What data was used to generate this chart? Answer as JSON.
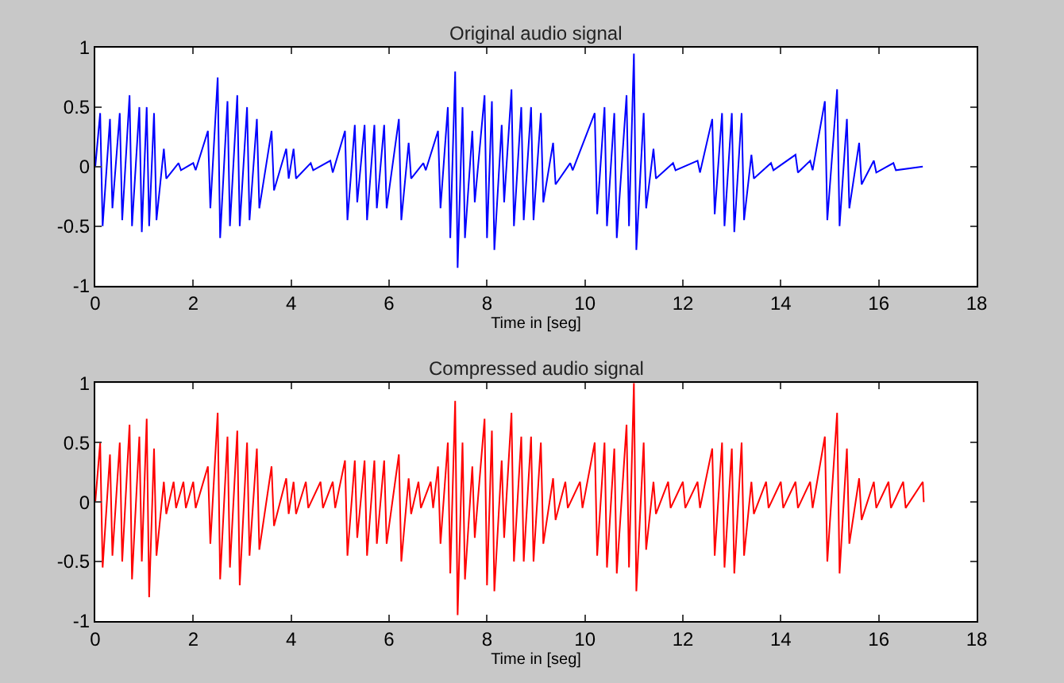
{
  "chart_data": [
    {
      "type": "line",
      "title": "Original audio signal",
      "xlabel": "Time in [seg]",
      "xlim": [
        0,
        18
      ],
      "xticks": [
        0,
        2,
        4,
        6,
        8,
        10,
        12,
        14,
        16,
        18
      ],
      "ylim": [
        -1,
        1
      ],
      "yticks": [
        -1,
        -0.5,
        0,
        0.5,
        1
      ],
      "marker": "none",
      "line_style": "solid",
      "series": [
        {
          "color": "#0000ff",
          "x": [
            0.0,
            0.1,
            0.15,
            0.3,
            0.35,
            0.5,
            0.55,
            0.7,
            0.75,
            0.9,
            0.95,
            1.05,
            1.1,
            1.2,
            1.25,
            1.4,
            1.45,
            1.7,
            1.75,
            2.0,
            2.05,
            2.3,
            2.35,
            2.5,
            2.55,
            2.7,
            2.75,
            2.9,
            2.95,
            3.1,
            3.15,
            3.3,
            3.35,
            3.6,
            3.65,
            3.9,
            3.95,
            4.05,
            4.1,
            4.4,
            4.45,
            4.8,
            4.85,
            5.1,
            5.15,
            5.3,
            5.35,
            5.5,
            5.55,
            5.7,
            5.75,
            5.9,
            5.95,
            6.2,
            6.25,
            6.4,
            6.45,
            6.7,
            6.75,
            7.0,
            7.05,
            7.2,
            7.25,
            7.35,
            7.4,
            7.5,
            7.55,
            7.7,
            7.75,
            7.95,
            8.0,
            8.1,
            8.15,
            8.3,
            8.35,
            8.5,
            8.55,
            8.7,
            8.75,
            8.9,
            8.95,
            9.1,
            9.15,
            9.35,
            9.4,
            9.7,
            9.75,
            10.2,
            10.25,
            10.4,
            10.45,
            10.6,
            10.65,
            10.85,
            10.9,
            11.0,
            11.05,
            11.2,
            11.25,
            11.4,
            11.45,
            11.8,
            11.85,
            12.3,
            12.35,
            12.6,
            12.65,
            12.8,
            12.85,
            13.0,
            13.05,
            13.2,
            13.25,
            13.4,
            13.45,
            13.8,
            13.85,
            14.3,
            14.35,
            14.6,
            14.65,
            14.9,
            14.95,
            15.15,
            15.2,
            15.35,
            15.4,
            15.6,
            15.65,
            15.9,
            15.95,
            16.3,
            16.35,
            16.9
          ],
          "values": [
            0.0,
            0.45,
            -0.5,
            0.4,
            -0.35,
            0.45,
            -0.45,
            0.6,
            -0.5,
            0.5,
            -0.55,
            0.5,
            -0.5,
            0.45,
            -0.45,
            0.15,
            -0.1,
            0.03,
            -0.03,
            0.03,
            -0.03,
            0.3,
            -0.35,
            0.75,
            -0.6,
            0.55,
            -0.5,
            0.6,
            -0.5,
            0.5,
            -0.45,
            0.4,
            -0.35,
            0.3,
            -0.2,
            0.15,
            -0.1,
            0.15,
            -0.1,
            0.03,
            -0.03,
            0.05,
            -0.05,
            0.3,
            -0.45,
            0.35,
            -0.3,
            0.35,
            -0.45,
            0.35,
            -0.35,
            0.35,
            -0.35,
            0.4,
            -0.45,
            0.2,
            -0.1,
            0.03,
            -0.03,
            0.3,
            -0.35,
            0.5,
            -0.6,
            0.8,
            -0.85,
            0.5,
            -0.6,
            0.3,
            -0.3,
            0.6,
            -0.6,
            0.55,
            -0.7,
            0.35,
            -0.3,
            0.65,
            -0.5,
            0.5,
            -0.45,
            0.5,
            -0.45,
            0.45,
            -0.3,
            0.2,
            -0.15,
            0.03,
            -0.03,
            0.45,
            -0.4,
            0.5,
            -0.5,
            0.45,
            -0.6,
            0.6,
            -0.5,
            0.95,
            -0.7,
            0.45,
            -0.35,
            0.15,
            -0.1,
            0.03,
            -0.03,
            0.05,
            -0.05,
            0.4,
            -0.4,
            0.45,
            -0.5,
            0.45,
            -0.55,
            0.45,
            -0.45,
            0.1,
            -0.1,
            0.03,
            -0.03,
            0.1,
            -0.05,
            0.05,
            -0.03,
            0.55,
            -0.45,
            0.65,
            -0.5,
            0.4,
            -0.35,
            0.2,
            -0.15,
            0.05,
            -0.05,
            0.03,
            -0.03,
            0.0
          ]
        }
      ]
    },
    {
      "type": "line",
      "title": "Compressed audio signal",
      "xlabel": "Time in [seg]",
      "xlim": [
        0,
        18
      ],
      "xticks": [
        0,
        2,
        4,
        6,
        8,
        10,
        12,
        14,
        16,
        18
      ],
      "ylim": [
        -1,
        1
      ],
      "yticks": [
        -1,
        -0.5,
        0,
        0.5,
        1
      ],
      "marker": "none",
      "line_style": "solid",
      "series": [
        {
          "color": "#ff0000",
          "x": [
            0.0,
            0.1,
            0.15,
            0.3,
            0.35,
            0.5,
            0.55,
            0.7,
            0.75,
            0.9,
            0.95,
            1.05,
            1.1,
            1.2,
            1.25,
            1.4,
            1.45,
            1.6,
            1.65,
            1.8,
            1.85,
            2.0,
            2.05,
            2.3,
            2.35,
            2.5,
            2.55,
            2.7,
            2.75,
            2.9,
            2.95,
            3.1,
            3.15,
            3.3,
            3.35,
            3.6,
            3.65,
            3.9,
            3.95,
            4.05,
            4.1,
            4.3,
            4.35,
            4.6,
            4.65,
            4.85,
            4.9,
            5.1,
            5.15,
            5.3,
            5.35,
            5.5,
            5.55,
            5.7,
            5.75,
            5.9,
            5.95,
            6.2,
            6.25,
            6.4,
            6.45,
            6.6,
            6.65,
            6.85,
            6.9,
            7.0,
            7.05,
            7.2,
            7.25,
            7.35,
            7.4,
            7.5,
            7.55,
            7.7,
            7.75,
            7.95,
            8.0,
            8.1,
            8.15,
            8.3,
            8.35,
            8.5,
            8.55,
            8.7,
            8.75,
            8.9,
            8.95,
            9.1,
            9.15,
            9.35,
            9.4,
            9.6,
            9.65,
            9.9,
            9.95,
            10.2,
            10.25,
            10.4,
            10.45,
            10.6,
            10.65,
            10.85,
            10.9,
            11.0,
            11.05,
            11.2,
            11.25,
            11.4,
            11.45,
            11.7,
            11.75,
            12.0,
            12.05,
            12.3,
            12.35,
            12.6,
            12.65,
            12.8,
            12.85,
            13.0,
            13.05,
            13.2,
            13.25,
            13.4,
            13.45,
            13.7,
            13.75,
            14.0,
            14.05,
            14.3,
            14.35,
            14.6,
            14.65,
            14.9,
            14.95,
            15.15,
            15.2,
            15.35,
            15.4,
            15.6,
            15.65,
            15.9,
            15.95,
            16.2,
            16.25,
            16.5,
            16.55,
            16.9,
            16.92
          ],
          "values": [
            0.0,
            0.5,
            -0.55,
            0.4,
            -0.45,
            0.5,
            -0.5,
            0.65,
            -0.65,
            0.55,
            -0.5,
            0.7,
            -0.8,
            0.45,
            -0.45,
            0.17,
            -0.1,
            0.17,
            -0.05,
            0.17,
            -0.05,
            0.17,
            -0.05,
            0.3,
            -0.35,
            0.75,
            -0.65,
            0.55,
            -0.55,
            0.6,
            -0.7,
            0.5,
            -0.45,
            0.45,
            -0.4,
            0.3,
            -0.2,
            0.2,
            -0.1,
            0.17,
            -0.1,
            0.17,
            -0.05,
            0.17,
            -0.05,
            0.17,
            -0.05,
            0.35,
            -0.45,
            0.35,
            -0.3,
            0.35,
            -0.45,
            0.35,
            -0.35,
            0.35,
            -0.35,
            0.4,
            -0.5,
            0.2,
            -0.1,
            0.17,
            -0.05,
            0.17,
            -0.05,
            0.3,
            -0.35,
            0.5,
            -0.6,
            0.85,
            -0.95,
            0.5,
            -0.65,
            0.3,
            -0.3,
            0.7,
            -0.7,
            0.6,
            -0.75,
            0.35,
            -0.3,
            0.75,
            -0.5,
            0.55,
            -0.5,
            0.55,
            -0.5,
            0.5,
            -0.35,
            0.2,
            -0.15,
            0.17,
            -0.05,
            0.17,
            -0.05,
            0.5,
            -0.45,
            0.5,
            -0.55,
            0.45,
            -0.6,
            0.65,
            -0.55,
            1.0,
            -0.75,
            0.5,
            -0.4,
            0.17,
            -0.1,
            0.17,
            -0.05,
            0.17,
            -0.05,
            0.17,
            -0.05,
            0.45,
            -0.45,
            0.5,
            -0.55,
            0.45,
            -0.6,
            0.5,
            -0.45,
            0.17,
            -0.1,
            0.17,
            -0.05,
            0.17,
            -0.05,
            0.17,
            -0.05,
            0.17,
            -0.05,
            0.55,
            -0.5,
            0.75,
            -0.6,
            0.45,
            -0.35,
            0.2,
            -0.15,
            0.17,
            -0.05,
            0.17,
            -0.05,
            0.17,
            -0.05,
            0.17,
            0.0
          ]
        }
      ]
    }
  ]
}
